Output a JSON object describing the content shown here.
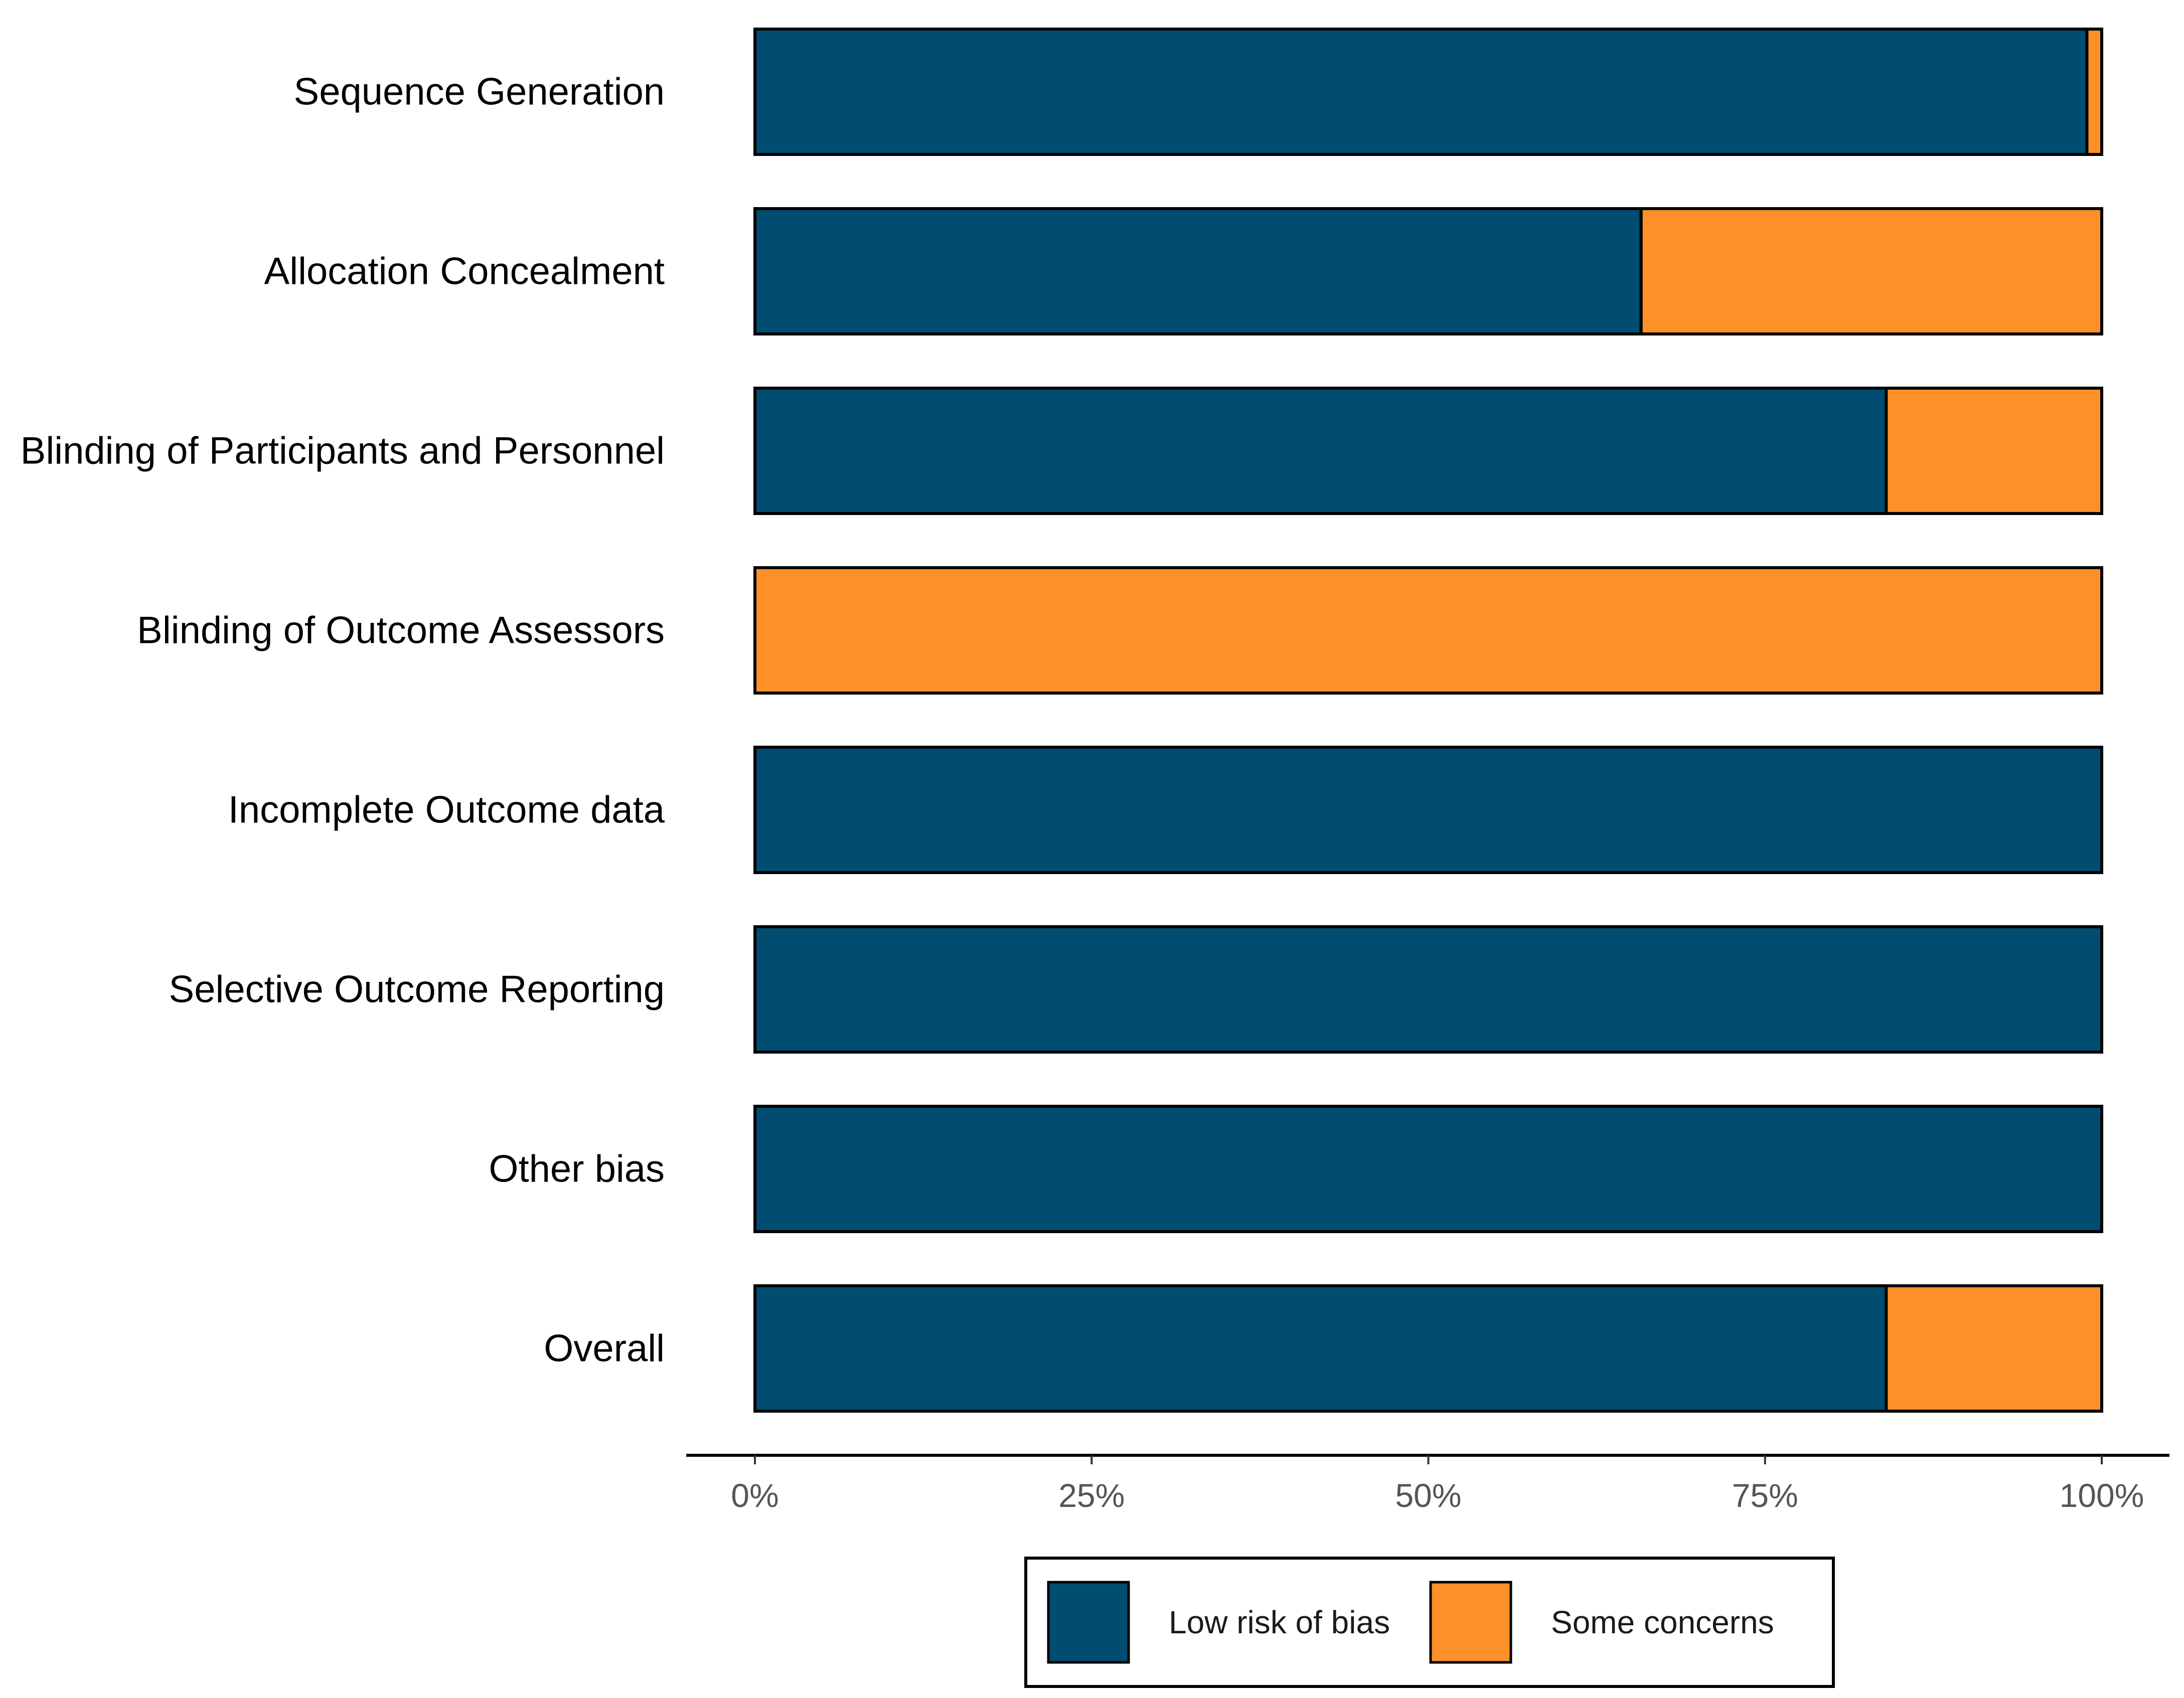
{
  "chart_data": {
    "type": "bar",
    "orientation": "horizontal",
    "stacked": true,
    "title": "",
    "xlabel": "",
    "ylabel": "",
    "xlim": [
      0,
      100
    ],
    "grid": false,
    "legend_position": "bottom",
    "categories": [
      "Sequence Generation",
      "Allocation Concealment",
      "Blinding of Participants and Personnel",
      "Blinding of Outcome Assessors",
      "Incomplete Outcome data",
      "Selective Outcome Reporting",
      "Other bias",
      "Overall"
    ],
    "series": [
      {
        "name": "Low risk of bias",
        "color": "#004D71",
        "values": [
          98.9,
          65.8,
          84.0,
          0,
          100,
          100,
          100,
          84.0
        ]
      },
      {
        "name": "Some concerns",
        "color": "#FE9029",
        "values": [
          1.1,
          34.2,
          16.0,
          100,
          0,
          0,
          0,
          16.0
        ]
      }
    ],
    "xticks": [
      0,
      25,
      50,
      75,
      100
    ],
    "xtick_labels": [
      "0%",
      "25%",
      "50%",
      "75%",
      "100%"
    ]
  }
}
